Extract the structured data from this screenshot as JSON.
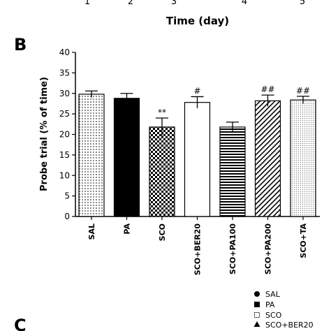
{
  "top_fragment": {
    "tick_labels": [
      "1",
      "2",
      "3",
      "4",
      "5"
    ],
    "xlabel": "Time (day)"
  },
  "panel_b": {
    "letter": "B"
  },
  "panel_c": {
    "letter": "C",
    "legend": [
      {
        "name": "SAL",
        "marker": "filled-circle"
      },
      {
        "name": "PA",
        "marker": "filled-square"
      },
      {
        "name": "SCO",
        "marker": "open-square"
      },
      {
        "name": "SCO+BER20",
        "marker": "filled-triangle"
      }
    ]
  },
  "chart_data": {
    "type": "bar",
    "title": "",
    "xlabel": "",
    "ylabel": "Probe trial (% of time)",
    "ylim": [
      0,
      40
    ],
    "yticks": [
      0,
      5,
      10,
      15,
      20,
      25,
      30,
      35,
      40
    ],
    "grid": false,
    "categories": [
      "SAL",
      "PA",
      "SCO",
      "SCO+BER20",
      "SCO+PA100",
      "SCO+PA200",
      "SCO+TA"
    ],
    "values": [
      29.8,
      28.8,
      21.8,
      27.8,
      21.8,
      28.2,
      28.4
    ],
    "errors": [
      0.8,
      1.2,
      2.2,
      1.4,
      1.2,
      1.4,
      0.9
    ],
    "annotations": [
      "",
      "",
      "**",
      "#",
      "",
      "##",
      "##"
    ],
    "patterns": [
      "dots",
      "solid-black",
      "checker",
      "open-white",
      "horizontal-lines",
      "diagonal-lines",
      "fine-dots"
    ]
  }
}
